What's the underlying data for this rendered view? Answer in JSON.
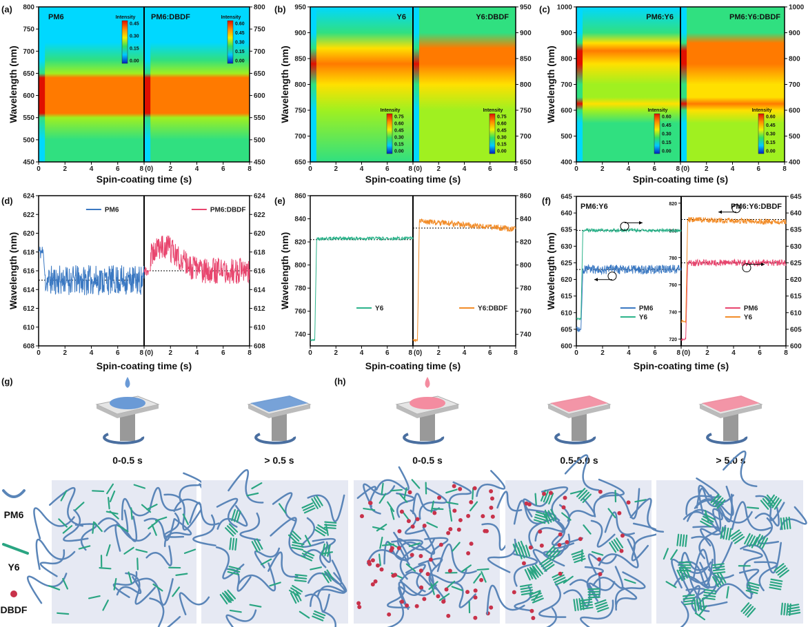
{
  "panel_labels": {
    "a": "(a)",
    "b": "(b)",
    "c": "(c)",
    "d": "(d)",
    "e": "(e)",
    "f": "(f)",
    "g": "(g)",
    "h": "(h)"
  },
  "xlabel": "Spin-coating time (s)",
  "ylabel": "Wavelength (nm)",
  "right_half_zero_label": "(0)",
  "colors": {
    "PM6": "#3a78c2",
    "PM6:DBDF": "#e8456e",
    "Y6": "#2bb38a",
    "Y6:DBDF": "#f28c28",
    "PM6_blend_DBDF": "#e8456e",
    "Y6_blend_DBDF": "#f28c28",
    "schematic_bg": "#e6e9f3",
    "dbdf_dot": "#c8324a"
  },
  "chart_data": [
    {
      "id": "a",
      "type": "heatmap",
      "halves": [
        "PM6",
        "PM6:DBDF"
      ],
      "xlim": [
        0,
        8
      ],
      "xticks": [
        0,
        2,
        4,
        6,
        8
      ],
      "ylim": [
        450,
        800
      ],
      "yticks": [
        450,
        500,
        550,
        600,
        650,
        700,
        750,
        800
      ],
      "colorbar_title": "Intensity",
      "colorbars": [
        [
          0.0,
          0.15,
          0.3,
          0.45
        ],
        [
          0.0,
          0.15,
          0.3,
          0.45,
          0.6
        ]
      ],
      "peak_band_nm": [
        560,
        640
      ]
    },
    {
      "id": "b",
      "type": "heatmap",
      "halves": [
        "Y6",
        "Y6:DBDF"
      ],
      "xlim": [
        0,
        8
      ],
      "xticks": [
        0,
        2,
        4,
        6,
        8
      ],
      "ylim": [
        650,
        950
      ],
      "yticks": [
        650,
        700,
        750,
        800,
        850,
        900,
        950
      ],
      "colorbar_title": "Intensity",
      "colorbars": [
        [
          0.0,
          0.15,
          0.3,
          0.45,
          0.6,
          0.75
        ],
        [
          0.0,
          0.15,
          0.3,
          0.45,
          0.6,
          0.75
        ]
      ],
      "peak_band_nm": [
        800,
        870
      ]
    },
    {
      "id": "c",
      "type": "heatmap",
      "halves": [
        "PM6:Y6",
        "PM6:Y6:DBDF"
      ],
      "xlim": [
        0,
        8
      ],
      "xticks": [
        0,
        2,
        4,
        6,
        8
      ],
      "ylim": [
        400,
        1000
      ],
      "yticks": [
        400,
        500,
        600,
        700,
        800,
        900,
        1000
      ],
      "colorbar_title": "Intensity",
      "colorbars": [
        [
          0.0,
          0.15,
          0.3,
          0.45,
          0.6
        ],
        [
          0.0,
          0.15,
          0.3,
          0.45,
          0.6
        ]
      ],
      "peak_band_nm": [
        [
          600,
          640
        ],
        [
          780,
          860
        ]
      ]
    },
    {
      "id": "d",
      "type": "line",
      "xlim": [
        0,
        8
      ],
      "xticks": [
        0,
        2,
        4,
        6,
        8
      ],
      "ylim": [
        608,
        624
      ],
      "yticks": [
        608,
        610,
        612,
        614,
        616,
        618,
        620,
        622,
        624
      ],
      "series": [
        {
          "name": "PM6",
          "half": "left",
          "mean": 615.0,
          "start": 618,
          "noise": 1.6
        },
        {
          "name": "PM6:DBDF",
          "half": "right",
          "mean": 616.0,
          "start": 616,
          "noise": 1.4,
          "hump": [
            1.5,
            618.5
          ]
        }
      ],
      "dashed_lines": [
        615.0,
        616.0
      ]
    },
    {
      "id": "e",
      "type": "line",
      "xlim": [
        0,
        8
      ],
      "xticks": [
        0,
        2,
        4,
        6,
        8
      ],
      "ylim": [
        730,
        860
      ],
      "yticks": [
        740,
        760,
        780,
        800,
        820,
        840,
        860
      ],
      "series": [
        {
          "name": "Y6",
          "half": "left",
          "mean": 823,
          "start": 735,
          "noise": 1.5
        },
        {
          "name": "Y6:DBDF",
          "half": "right",
          "mean": 838,
          "start": 735,
          "noise": 2.5,
          "drift_to": 831
        }
      ],
      "dashed_lines": [
        822,
        832
      ]
    },
    {
      "id": "f",
      "type": "line",
      "xlim": [
        0,
        8
      ],
      "xticks": [
        0,
        2,
        4,
        6,
        8
      ],
      "ylim": [
        600,
        645
      ],
      "yticks": [
        600,
        605,
        610,
        615,
        620,
        625,
        630,
        635,
        640,
        645
      ],
      "y2lim": [
        715,
        825
      ],
      "y2ticks": [
        720,
        740,
        760,
        780,
        800,
        820
      ],
      "halves": [
        "PM6:Y6",
        "PM6:Y6:DBDF"
      ],
      "series": [
        {
          "name": "PM6",
          "half": "left",
          "axis": "y",
          "mean": 623,
          "start": 605,
          "noise": 1.4,
          "color": "#3a78c2"
        },
        {
          "name": "Y6",
          "half": "left",
          "axis": "y2",
          "mean": 800,
          "start": 735,
          "noise": 1.2,
          "color": "#2bb38a"
        },
        {
          "name": "PM6",
          "half": "right",
          "axis": "y",
          "mean": 625,
          "start": 602,
          "noise": 1.0,
          "color": "#e8456e"
        },
        {
          "name": "Y6",
          "half": "right",
          "axis": "y2",
          "mean": 808,
          "start": 733,
          "noise": 2.0,
          "drift_to": 806,
          "color": "#f28c28"
        }
      ]
    }
  ],
  "schematic": {
    "stage_labels": [
      "0-0.5 s",
      "> 0.5 s",
      "0-0.5 s",
      "0.5-5.0 s",
      "> 5.0 s"
    ],
    "legend": [
      "PM6",
      "Y6",
      "DBDF"
    ]
  }
}
